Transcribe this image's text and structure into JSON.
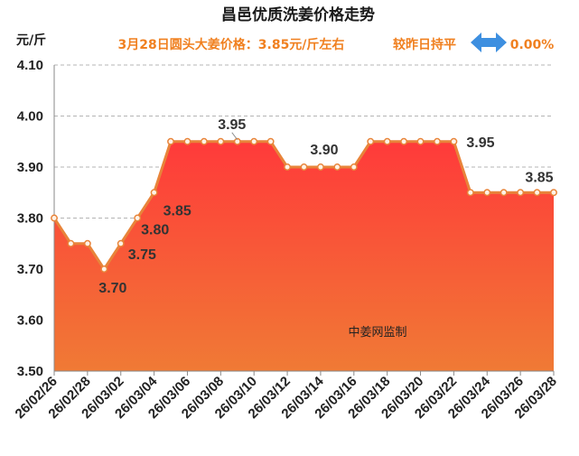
{
  "chart_data": {
    "type": "area",
    "title": "昌邑优质洗姜价格走势",
    "subtitle": {
      "price_text": "3月28日圆头大姜价格：3.85元/斤左右",
      "compare_text": "较昨日持平",
      "change_text": "0.00%"
    },
    "ylabel": "元/斤",
    "ylim": [
      3.5,
      4.1
    ],
    "yticks": [
      "3.50",
      "3.60",
      "3.70",
      "3.80",
      "3.90",
      "4.00",
      "4.10"
    ],
    "x": [
      "26/02/26",
      "26/02/27",
      "26/02/28",
      "26/03/01",
      "26/03/02",
      "26/03/03",
      "26/03/04",
      "26/03/05",
      "26/03/06",
      "26/03/07",
      "26/03/08",
      "26/03/09",
      "26/03/10",
      "26/03/11",
      "26/03/12",
      "26/03/13",
      "26/03/14",
      "26/03/15",
      "26/03/16",
      "26/03/17",
      "26/03/18",
      "26/03/19",
      "26/03/20",
      "26/03/21",
      "26/03/22",
      "26/03/23",
      "26/03/24",
      "26/03/25",
      "26/03/26",
      "26/03/27",
      "26/03/28"
    ],
    "xtick_labels": [
      "26/02/26",
      "26/02/28",
      "26/03/02",
      "26/03/04",
      "26/03/06",
      "26/03/08",
      "26/03/10",
      "26/03/12",
      "26/03/14",
      "26/03/16",
      "26/03/18",
      "26/03/20",
      "26/03/22",
      "26/03/24",
      "26/03/26",
      "26/03/28"
    ],
    "series": [
      {
        "values": [
          3.8,
          3.75,
          3.75,
          3.7,
          3.75,
          3.8,
          3.85,
          3.95,
          3.95,
          3.95,
          3.95,
          3.95,
          3.95,
          3.95,
          3.9,
          3.9,
          3.9,
          3.9,
          3.9,
          3.95,
          3.95,
          3.95,
          3.95,
          3.95,
          3.95,
          3.85,
          3.85,
          3.85,
          3.85,
          3.85,
          3.85
        ]
      }
    ],
    "data_labels": [
      {
        "index": 3,
        "text": "3.70"
      },
      {
        "index": 4,
        "text": "3.75"
      },
      {
        "index": 5,
        "text": "3.80"
      },
      {
        "index": 6,
        "text": "3.85"
      },
      {
        "index": 11,
        "text": "3.95"
      },
      {
        "index": 16,
        "text": "3.90"
      },
      {
        "index": 24,
        "text": "3.95"
      },
      {
        "index": 30,
        "text": "3.85"
      }
    ],
    "watermark": "中姜网监制",
    "grid": true,
    "colors": {
      "line": "#e8843a",
      "fill_top": "#ff3a3a",
      "fill_bottom": "#f07a35",
      "subtitle": "#f08020",
      "arrow": "#3d8fe0"
    }
  }
}
